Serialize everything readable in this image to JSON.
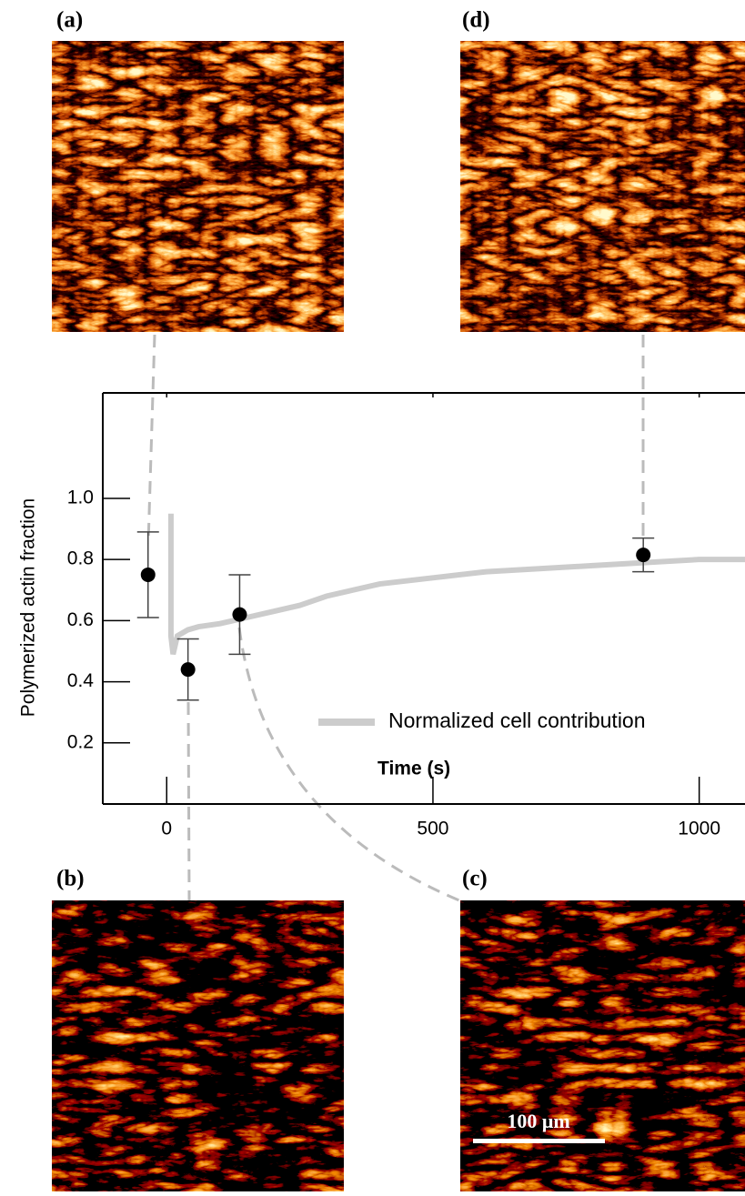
{
  "panels": [
    {
      "label": "(a)"
    },
    {
      "label": "(d)"
    },
    {
      "label": "(b)"
    },
    {
      "label": "(c)"
    }
  ],
  "scale_bar": "100 μm",
  "chart_data": {
    "type": "scatter",
    "xlabel": "Time (s)",
    "ylabel": "Polymerized actin fraction",
    "xlim": [
      -120,
      1086
    ],
    "ylim": [
      0,
      1.345
    ],
    "xticks": [
      0,
      500,
      1000
    ],
    "yticks": [
      0.2,
      0.4,
      0.6,
      0.8,
      {
        "value": 1,
        "label": "1.0"
      }
    ],
    "legend": "lower right",
    "series": [
      {
        "name": "Normalized cell contribution",
        "type": "line",
        "color": "#cccccc",
        "x": [
          8,
          8,
          12,
          20,
          40,
          60,
          100,
          150,
          200,
          250,
          300,
          350,
          400,
          500,
          600,
          700,
          800,
          900,
          1000,
          1086
        ],
        "values": [
          0.95,
          0.55,
          0.49,
          0.55,
          0.57,
          0.58,
          0.59,
          0.61,
          0.63,
          0.65,
          0.68,
          0.7,
          0.72,
          0.74,
          0.76,
          0.77,
          0.78,
          0.79,
          0.8,
          0.8
        ]
      },
      {
        "type": "scatter",
        "color": "#000000",
        "x": [
          -35,
          40,
          137,
          895
        ],
        "values": [
          0.75,
          0.44,
          0.62,
          0.815
        ],
        "errors": [
          0.14,
          0.1,
          0.13,
          0.055
        ]
      }
    ]
  }
}
